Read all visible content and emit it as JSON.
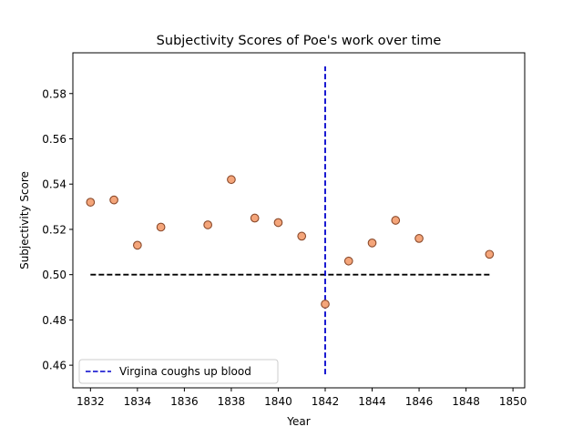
{
  "chart_data": {
    "type": "scatter",
    "title": "Subjectivity Scores of Poe's work over time",
    "xlabel": "Year",
    "ylabel": "Subjectivity Score",
    "xlim": [
      1831.25,
      1850.5
    ],
    "ylim": [
      0.45,
      0.598
    ],
    "xticks": [
      1832,
      1834,
      1836,
      1838,
      1840,
      1842,
      1844,
      1846,
      1848,
      1850
    ],
    "yticks": [
      0.46,
      0.48,
      0.5,
      0.52,
      0.54,
      0.56,
      0.58
    ],
    "grid": false,
    "legend": {
      "placement": "lower-left",
      "entries": [
        "Virgina coughs up blood"
      ]
    },
    "series": [
      {
        "kind": "scatter",
        "color": "#f4a57a",
        "edgecolor": "#8b4a2b",
        "points": [
          {
            "x": 1832,
            "y": 0.532
          },
          {
            "x": 1833,
            "y": 0.533
          },
          {
            "x": 1834,
            "y": 0.513
          },
          {
            "x": 1835,
            "y": 0.521
          },
          {
            "x": 1837,
            "y": 0.522
          },
          {
            "x": 1838,
            "y": 0.542
          },
          {
            "x": 1839,
            "y": 0.525
          },
          {
            "x": 1840,
            "y": 0.523
          },
          {
            "x": 1841,
            "y": 0.517
          },
          {
            "x": 1842,
            "y": 0.487
          },
          {
            "x": 1843,
            "y": 0.506
          },
          {
            "x": 1844,
            "y": 0.514
          },
          {
            "x": 1845,
            "y": 0.524
          },
          {
            "x": 1846,
            "y": 0.516
          },
          {
            "x": 1849,
            "y": 0.509
          }
        ]
      }
    ],
    "reference_lines": [
      {
        "orientation": "horizontal",
        "y": 0.5,
        "x_from": 1832,
        "x_to": 1849,
        "color": "#000000",
        "style": "dashed"
      },
      {
        "orientation": "vertical",
        "x": 1842,
        "y_from": 0.456,
        "y_to": 0.592,
        "color": "#0000cc",
        "style": "dashed",
        "label": "Virgina coughs up blood"
      }
    ]
  }
}
